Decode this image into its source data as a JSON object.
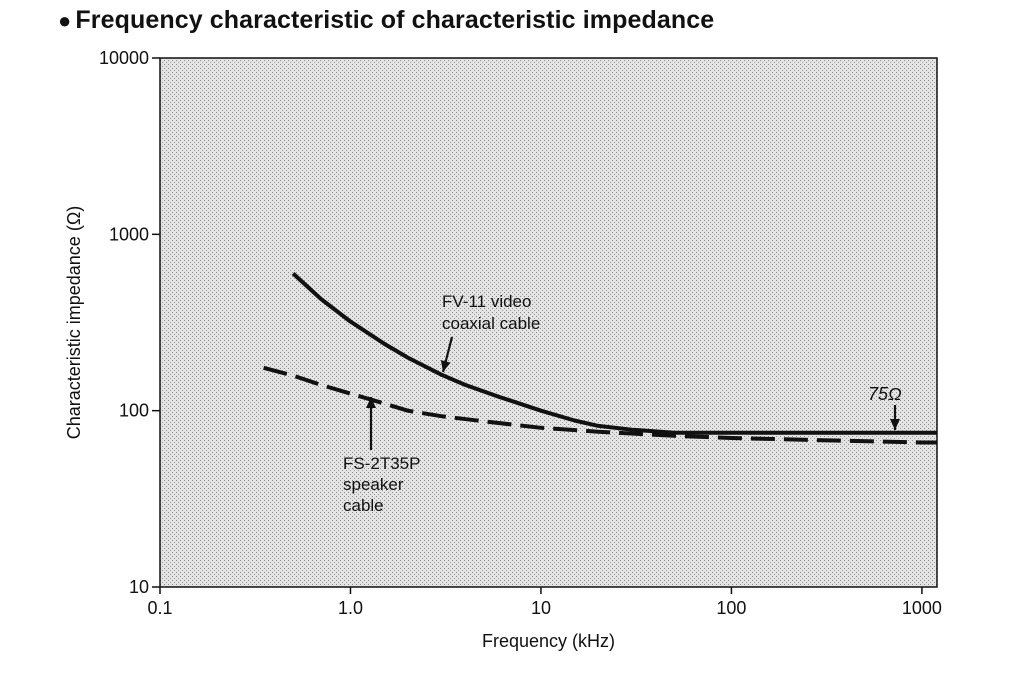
{
  "chart_data": {
    "type": "line",
    "title": "Frequency characteristic of characteristic impedance",
    "xlabel": "Frequency (kHz)",
    "ylabel": "Characteristic impedance (Ω)",
    "xscale": "log",
    "yscale": "log",
    "xlim": [
      0.1,
      1200
    ],
    "ylim": [
      10,
      10000
    ],
    "x_ticks": [
      {
        "value": 0.1,
        "label": "0.1"
      },
      {
        "value": 1,
        "label": "1.0"
      },
      {
        "value": 10,
        "label": "10"
      },
      {
        "value": 100,
        "label": "100"
      },
      {
        "value": 1000,
        "label": "1000"
      }
    ],
    "y_ticks": [
      {
        "value": 10,
        "label": "10"
      },
      {
        "value": 100,
        "label": "100"
      },
      {
        "value": 1000,
        "label": "1000"
      },
      {
        "value": 10000,
        "label": "10000"
      }
    ],
    "grid": false,
    "series": [
      {
        "label_lines": [
          "FV-11 video",
          "coaxial cable"
        ],
        "style": "solid",
        "color": "#111111",
        "points": [
          [
            0.5,
            600
          ],
          [
            0.7,
            430
          ],
          [
            1.0,
            320
          ],
          [
            1.5,
            240
          ],
          [
            2.0,
            200
          ],
          [
            3.0,
            160
          ],
          [
            4.0,
            140
          ],
          [
            6.0,
            120
          ],
          [
            10,
            100
          ],
          [
            15,
            88
          ],
          [
            20,
            82
          ],
          [
            30,
            78
          ],
          [
            50,
            75
          ],
          [
            100,
            75
          ],
          [
            300,
            75
          ],
          [
            1000,
            75
          ],
          [
            1200,
            75
          ]
        ]
      },
      {
        "label_lines": [
          "FS-2T35P",
          "speaker",
          "cable"
        ],
        "style": "dashed",
        "color": "#111111",
        "points": [
          [
            0.35,
            175
          ],
          [
            0.5,
            158
          ],
          [
            0.7,
            140
          ],
          [
            1.0,
            125
          ],
          [
            1.5,
            110
          ],
          [
            2.0,
            100
          ],
          [
            3.0,
            93
          ],
          [
            5.0,
            87
          ],
          [
            10,
            80
          ],
          [
            20,
            76
          ],
          [
            50,
            72
          ],
          [
            100,
            70
          ],
          [
            300,
            68
          ],
          [
            1000,
            66
          ],
          [
            1200,
            66
          ]
        ]
      }
    ],
    "annotations": [
      {
        "text": "75Ω"
      }
    ]
  }
}
